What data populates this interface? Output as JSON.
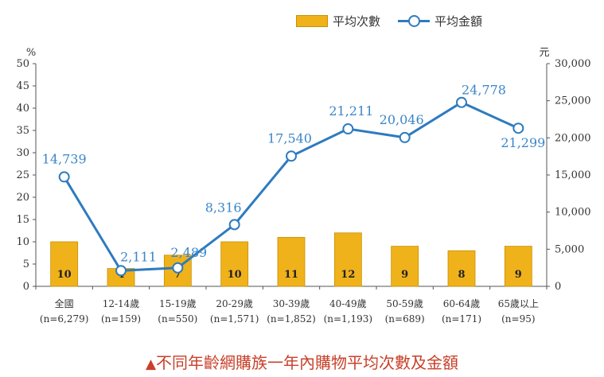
{
  "legend": {
    "bar_label": "平均次數",
    "line_label": "平均金額"
  },
  "caption": {
    "marker": "▲",
    "text": "不同年齡網購族一年內購物平均次數及金額"
  },
  "colors": {
    "bar": "#f0b21a",
    "bar_border": "#c78f00",
    "line": "#2e7bbf",
    "line_label": "#3a86c8",
    "axis": "#555555"
  },
  "chart_data": {
    "type": "bar+line",
    "categories": [
      "全國",
      "12-14歲",
      "15-19歲",
      "20-29歲",
      "30-39歲",
      "40-49歲",
      "50-59歲",
      "60-64歲",
      "65歲以上"
    ],
    "sample_sizes": [
      "(n=6,279)",
      "(n=159)",
      "(n=550)",
      "(n=1,571)",
      "(n=1,852)",
      "(n=1,193)",
      "(n=689)",
      "(n=171)",
      "(n=95)"
    ],
    "series": [
      {
        "name": "平均次數",
        "type": "bar",
        "axis": "left",
        "values": [
          10,
          4,
          7,
          10,
          11,
          12,
          9,
          8,
          9
        ],
        "labels": [
          "10",
          "4",
          "7",
          "10",
          "11",
          "12",
          "9",
          "8",
          "9"
        ]
      },
      {
        "name": "平均金額",
        "type": "line",
        "axis": "right",
        "values": [
          14739,
          2111,
          2489,
          8316,
          17540,
          21211,
          20046,
          24778,
          21299
        ],
        "labels": [
          "14,739",
          "2,111",
          "2,489",
          "8,316",
          "17,540",
          "21,211",
          "20,046",
          "24,778",
          "21,299"
        ]
      }
    ],
    "y_left": {
      "unit": "%",
      "range": [
        0,
        50
      ],
      "ticks": [
        "0",
        "5",
        "10",
        "15",
        "20",
        "25",
        "30",
        "35",
        "40",
        "45",
        "50"
      ]
    },
    "y_right": {
      "unit": "元",
      "range": [
        0,
        30000
      ],
      "ticks": [
        "0",
        "5,000",
        "10,000",
        "15,000",
        "20,000",
        "25,000",
        "30,000"
      ]
    },
    "legend_position": "top-right",
    "grid": false
  }
}
